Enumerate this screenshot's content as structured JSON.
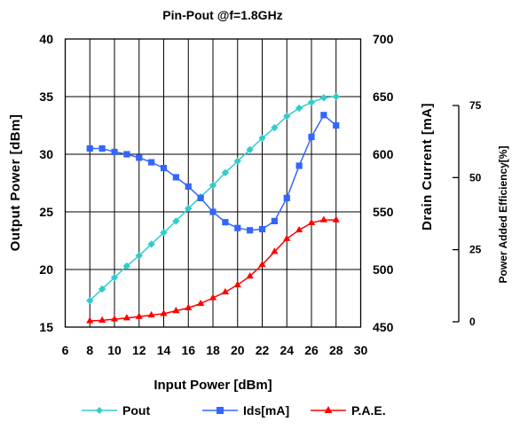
{
  "chart_data": {
    "type": "line",
    "title": "Pin-Pout @f=1.8GHz",
    "xlabel": "Input Power [dBm]",
    "ylabel_left": "Output Power [dBm]",
    "ylabel_right": "Drain Current [mA]",
    "ylabel_right2": "Power Added Efficiency[%]",
    "xlim": [
      6,
      30
    ],
    "xticks": [
      6,
      8,
      10,
      12,
      14,
      16,
      18,
      20,
      22,
      24,
      26,
      28,
      30
    ],
    "ylim_left": [
      15,
      40
    ],
    "yticks_left": [
      15,
      20,
      25,
      30,
      35,
      40
    ],
    "ylim_right": [
      450,
      700
    ],
    "yticks_right": [
      450,
      500,
      550,
      600,
      650,
      700
    ],
    "ylim_right2": [
      0,
      75
    ],
    "yticks_right2": [
      0,
      25,
      50,
      75
    ],
    "grid": true,
    "legend_position": "bottom",
    "x": [
      8,
      9,
      10,
      11,
      12,
      13,
      14,
      15,
      16,
      17,
      18,
      19,
      20,
      21,
      22,
      23,
      24,
      25,
      26,
      27,
      28
    ],
    "series": [
      {
        "name": "Pout",
        "axis": "left",
        "color": "#33cccc",
        "marker": "diamond",
        "values": [
          17.3,
          18.3,
          19.3,
          20.3,
          21.2,
          22.2,
          23.2,
          24.2,
          25.3,
          26.3,
          27.3,
          28.4,
          29.4,
          30.4,
          31.4,
          32.3,
          33.3,
          34.0,
          34.5,
          34.9,
          35.0
        ]
      },
      {
        "name": "Ids[mA]",
        "axis": "right",
        "color": "#3366ff",
        "marker": "square",
        "values": [
          605,
          605,
          602,
          600,
          597,
          593,
          588,
          580,
          572,
          562,
          550,
          541,
          536,
          534,
          535,
          542,
          562,
          590,
          615,
          634,
          625
        ]
      },
      {
        "name": "P.A.E.",
        "axis": "right2",
        "color": "#ff0000",
        "marker": "triangle",
        "values": [
          0.3,
          0.5,
          0.9,
          1.3,
          1.8,
          2.3,
          2.8,
          3.8,
          4.8,
          6.3,
          8.3,
          10.3,
          12.8,
          15.8,
          19.8,
          24.3,
          28.8,
          31.8,
          34.3,
          35.3,
          35.3
        ]
      }
    ]
  }
}
